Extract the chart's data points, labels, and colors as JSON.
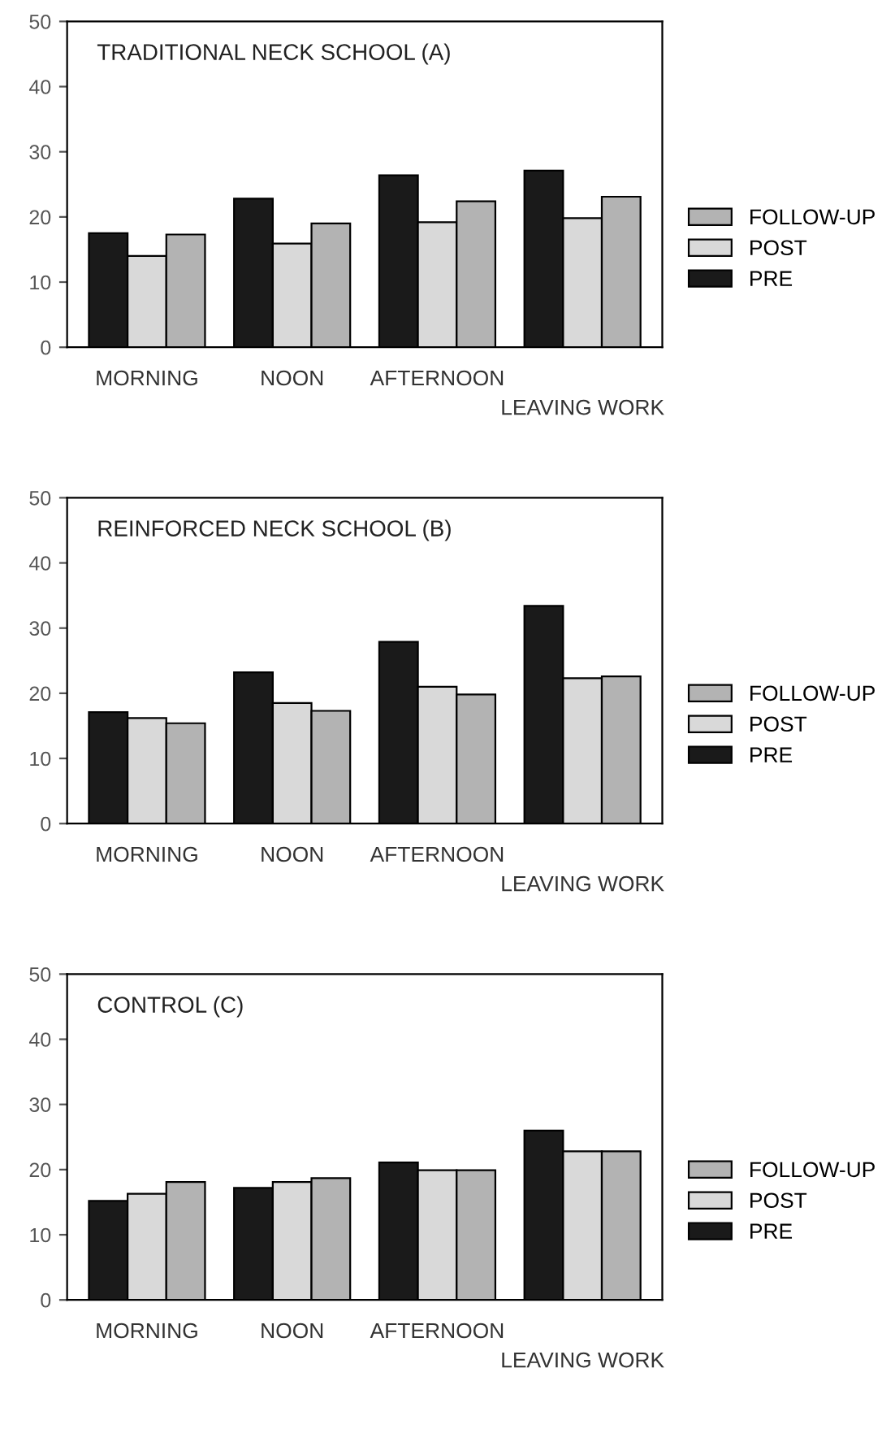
{
  "chart_data": [
    {
      "type": "bar",
      "title": "TRADITIONAL NECK SCHOOL (A)",
      "categories": [
        "MORNING",
        "NOON",
        "AFTERNOON",
        "LEAVING WORK"
      ],
      "ylim": [
        0,
        50
      ],
      "yticks": [
        0,
        10,
        20,
        30,
        40,
        50
      ],
      "legend": "right",
      "grid": false,
      "series": [
        {
          "name": "PRE",
          "color": "#1a1a1a",
          "values": [
            17.5,
            22.8,
            26.4,
            27.1
          ]
        },
        {
          "name": "POST",
          "color": "#d9d9d9",
          "values": [
            14.0,
            15.9,
            19.2,
            19.8
          ]
        },
        {
          "name": "FOLLOW-UP",
          "color": "#b3b3b3",
          "values": [
            17.3,
            19.0,
            22.4,
            23.1
          ]
        }
      ]
    },
    {
      "type": "bar",
      "title": "REINFORCED NECK SCHOOL (B)",
      "categories": [
        "MORNING",
        "NOON",
        "AFTERNOON",
        "LEAVING WORK"
      ],
      "ylim": [
        0,
        50
      ],
      "yticks": [
        0,
        10,
        20,
        30,
        40,
        50
      ],
      "legend": "right",
      "grid": false,
      "series": [
        {
          "name": "PRE",
          "color": "#1a1a1a",
          "values": [
            17.1,
            23.2,
            27.9,
            33.4
          ]
        },
        {
          "name": "POST",
          "color": "#d9d9d9",
          "values": [
            16.2,
            18.5,
            21.0,
            22.3
          ]
        },
        {
          "name": "FOLLOW-UP",
          "color": "#b3b3b3",
          "values": [
            15.4,
            17.3,
            19.8,
            22.6
          ]
        }
      ]
    },
    {
      "type": "bar",
      "title": "CONTROL (C)",
      "categories": [
        "MORNING",
        "NOON",
        "AFTERNOON",
        "LEAVING WORK"
      ],
      "ylim": [
        0,
        50
      ],
      "yticks": [
        0,
        10,
        20,
        30,
        40,
        50
      ],
      "legend": "right",
      "grid": false,
      "series": [
        {
          "name": "PRE",
          "color": "#1a1a1a",
          "values": [
            15.2,
            17.2,
            21.1,
            26.0
          ]
        },
        {
          "name": "POST",
          "color": "#d9d9d9",
          "values": [
            16.3,
            18.1,
            19.9,
            22.8
          ]
        },
        {
          "name": "FOLLOW-UP",
          "color": "#b3b3b3",
          "values": [
            18.1,
            18.7,
            19.9,
            22.8
          ]
        }
      ]
    }
  ]
}
